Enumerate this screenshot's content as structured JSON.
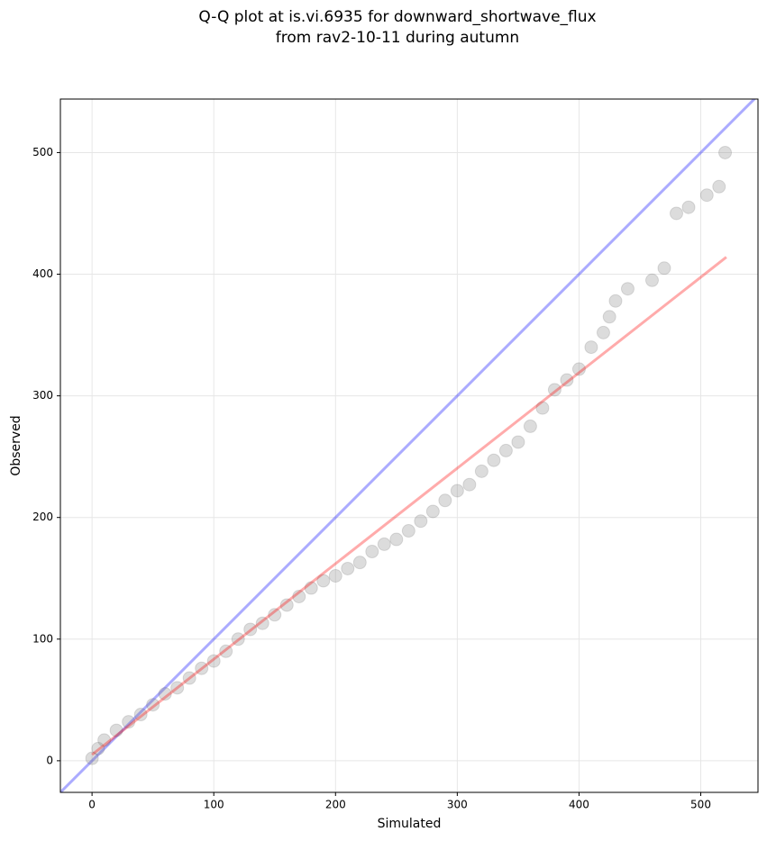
{
  "chart_data": {
    "type": "scatter",
    "title": [
      "Q-Q plot at is.vi.6935 for downward_shortwave_flux",
      "from rav2-10-11 during autumn"
    ],
    "x_label": "Simulated",
    "y_label": "Observed",
    "xlim": [
      -26,
      547
    ],
    "ylim": [
      -26,
      544
    ],
    "xticks": [
      0,
      100,
      200,
      300,
      400,
      500
    ],
    "yticks": [
      0,
      100,
      200,
      300,
      400,
      500
    ],
    "grid": true,
    "x": [
      0,
      5,
      10,
      20,
      30,
      40,
      50,
      60,
      70,
      80,
      90,
      100,
      110,
      120,
      130,
      140,
      150,
      160,
      170,
      180,
      190,
      200,
      210,
      220,
      230,
      240,
      250,
      260,
      270,
      280,
      290,
      300,
      310,
      320,
      330,
      340,
      350,
      360,
      370,
      380,
      390,
      400,
      410,
      420,
      425,
      430,
      440,
      460,
      470,
      480,
      490,
      505,
      515,
      520
    ],
    "series": [
      {
        "color": "#808080",
        "values": [
          2,
          10,
          17,
          25,
          32,
          38,
          46,
          55,
          60,
          68,
          76,
          82,
          90,
          100,
          108,
          113,
          120,
          128,
          135,
          142,
          148,
          152,
          158,
          163,
          172,
          178,
          182,
          189,
          197,
          205,
          214,
          222,
          227,
          238,
          247,
          255,
          262,
          275,
          290,
          305,
          313,
          322,
          340,
          352,
          365,
          378,
          388,
          395,
          405,
          450,
          455,
          465,
          472,
          500
        ]
      }
    ],
    "identity_line": {
      "color": "#0000ff",
      "x": [
        -26,
        547
      ],
      "y": [
        -26,
        547
      ]
    },
    "fit_line": {
      "color": "#ff0000",
      "x": [
        0,
        521
      ],
      "y": [
        5,
        414
      ]
    }
  }
}
